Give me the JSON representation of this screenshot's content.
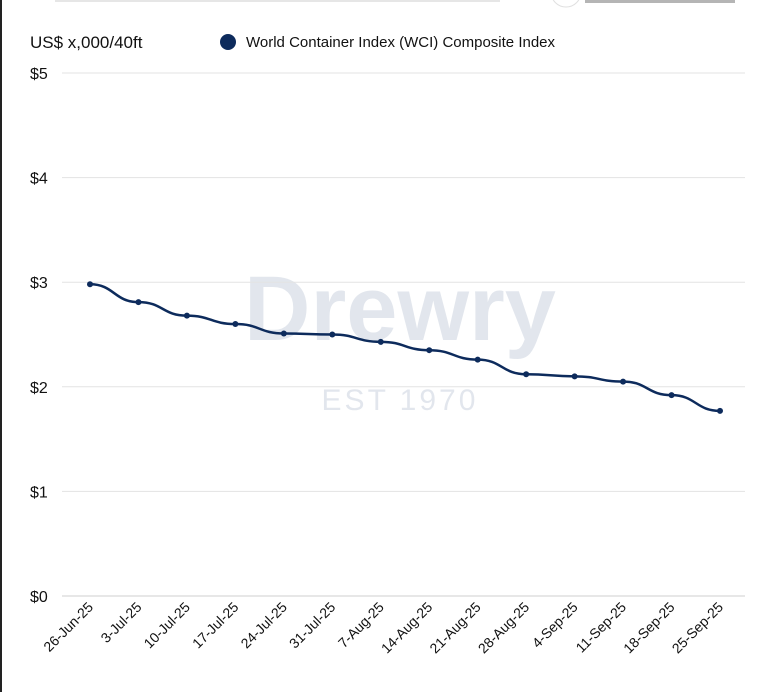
{
  "chart_data": {
    "type": "line",
    "ylabel": "US$ x,000/40ft",
    "legend": [
      {
        "name": "World Container Index (WCI) Composite Index",
        "color": "#0d2b5c"
      }
    ],
    "legend_placement": "top",
    "grid": true,
    "ylim": [
      0,
      5
    ],
    "yticks": [
      0,
      1,
      2,
      3,
      4,
      5
    ],
    "ytick_labels": [
      "$0",
      "$1",
      "$2",
      "$3",
      "$4",
      "$5"
    ],
    "categories": [
      "26-Jun-25",
      "3-Jul-25",
      "10-Jul-25",
      "17-Jul-25",
      "24-Jul-25",
      "31-Jul-25",
      "7-Aug-25",
      "14-Aug-25",
      "21-Aug-25",
      "28-Aug-25",
      "4-Sep-25",
      "11-Sep-25",
      "18-Sep-25",
      "25-Sep-25"
    ],
    "series": [
      {
        "name": "World Container Index (WCI) Composite Index",
        "values": [
          2.98,
          2.81,
          2.68,
          2.6,
          2.51,
          2.5,
          2.43,
          2.35,
          2.26,
          2.12,
          2.1,
          2.05,
          1.92,
          1.77
        ]
      }
    ],
    "watermark": {
      "brand": "Drewry",
      "tagline": "EST 1970"
    }
  },
  "colors": {
    "line": "#0d2b5c",
    "grid": "#e3e3e3"
  }
}
